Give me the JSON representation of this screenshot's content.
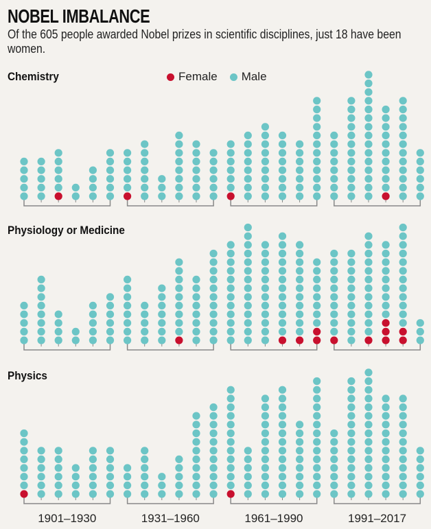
{
  "title": "NOBEL IMBALANCE",
  "subtitle": "Of the 605 people awarded Nobel prizes in scientific disciplines, just 18 have been women.",
  "legend": {
    "female": "Female",
    "male": "Male"
  },
  "colors": {
    "female": "#c8102e",
    "male": "#6cc5c6",
    "bracket": "#888888",
    "background": "#f4f2ee"
  },
  "chart_data": {
    "type": "scatter",
    "subtype": "stacked dot plot",
    "title": "NOBEL IMBALANCE",
    "legend_placement": "top",
    "periods": [
      "1901–1930",
      "1931–1960",
      "1961–1990",
      "1991–2017"
    ],
    "columns_per_period": 6,
    "panels": [
      {
        "name": "Chemistry",
        "totals": [
          5,
          5,
          6,
          2,
          4,
          6,
          6,
          7,
          3,
          8,
          7,
          6,
          7,
          8,
          9,
          8,
          7,
          12,
          8,
          12,
          15,
          11,
          12,
          6
        ],
        "females": [
          0,
          0,
          1,
          0,
          0,
          0,
          1,
          0,
          0,
          0,
          0,
          0,
          1,
          0,
          0,
          0,
          0,
          0,
          0,
          0,
          0,
          1,
          0,
          0
        ]
      },
      {
        "name": "Physiology or Medicine",
        "totals": [
          5,
          8,
          4,
          2,
          5,
          6,
          8,
          5,
          7,
          10,
          8,
          11,
          12,
          14,
          12,
          13,
          12,
          10,
          11,
          11,
          13,
          12,
          14,
          3
        ],
        "females": [
          0,
          0,
          0,
          0,
          0,
          0,
          0,
          0,
          0,
          1,
          0,
          0,
          0,
          0,
          0,
          1,
          1,
          2,
          1,
          0,
          1,
          3,
          2,
          0
        ]
      },
      {
        "name": "Physics",
        "totals": [
          8,
          6,
          6,
          4,
          6,
          6,
          4,
          6,
          3,
          5,
          10,
          11,
          13,
          6,
          12,
          13,
          9,
          14,
          8,
          14,
          15,
          12,
          12,
          6
        ],
        "females": [
          1,
          0,
          0,
          0,
          0,
          0,
          0,
          0,
          0,
          0,
          0,
          0,
          1,
          0,
          0,
          0,
          0,
          0,
          0,
          0,
          0,
          0,
          0,
          0
        ]
      }
    ]
  }
}
